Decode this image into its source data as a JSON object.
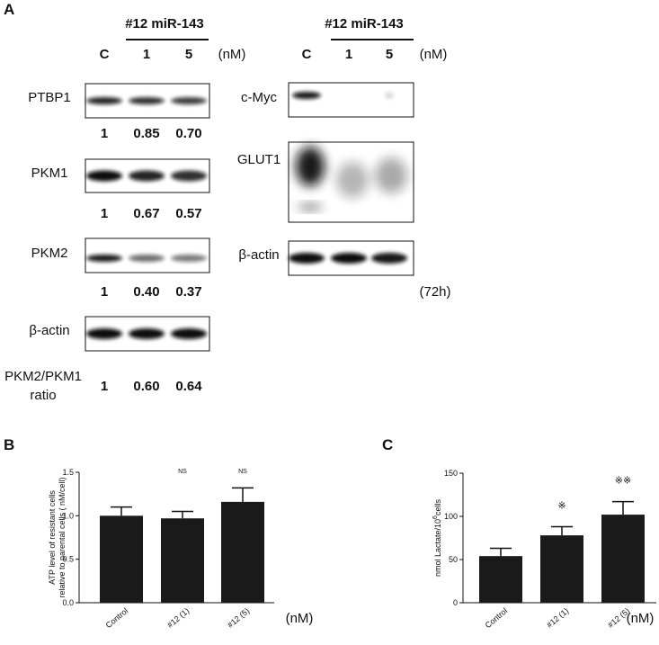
{
  "panel_a": {
    "label": "A",
    "left": {
      "treatment": "#12 miR-143",
      "lanes": [
        "C",
        "1",
        "5"
      ],
      "unit": "(nM)",
      "blots": [
        {
          "name": "PTBP1",
          "quant": [
            "1",
            "0.85",
            "0.70"
          ]
        },
        {
          "name": "PKM1",
          "quant": [
            "1",
            "0.67",
            "0.57"
          ]
        },
        {
          "name": "PKM2",
          "quant": [
            "1",
            "0.40",
            "0.37"
          ]
        },
        {
          "name": "β-actin"
        }
      ],
      "ratio": {
        "label": [
          "PKM2/PKM1",
          "ratio"
        ],
        "quant": [
          "1",
          "0.60",
          "0.64"
        ]
      }
    },
    "right": {
      "treatment": "#12 miR-143",
      "lanes": [
        "C",
        "1",
        "5"
      ],
      "unit": "(nM)",
      "blots": [
        {
          "name": "c-Myc"
        },
        {
          "name": "GLUT1"
        },
        {
          "name": "β-actin"
        }
      ],
      "time": "(72h)"
    }
  },
  "chart_data": [
    {
      "type": "bar",
      "panel": "B",
      "y_label": [
        "ATP level of resistant cells",
        "relative to parental cells ( nM/cell)"
      ],
      "categories": [
        "Control",
        "#12 (1)",
        "#12 (5)"
      ],
      "unit": "(nM)",
      "series": [
        {
          "color": "#1a1a1a",
          "values": [
            1.0,
            0.97,
            1.16
          ],
          "errors": [
            0.1,
            0.08,
            0.16
          ]
        }
      ],
      "annotations": [
        null,
        "NS",
        "NS"
      ],
      "ylim": [
        0,
        1.5
      ],
      "yticks": [
        {
          "value": 0,
          "label": "0.0"
        },
        {
          "value": 0.5,
          "label": "0.5"
        },
        {
          "value": 1,
          "label": "1.0"
        },
        {
          "value": 1.5,
          "label": "1.5"
        }
      ]
    },
    {
      "type": "bar",
      "panel": "C",
      "y_label": [
        "nmol Lactate/10",
        "6",
        "cells"
      ],
      "categories": [
        "Control",
        "#12 (1)",
        "#12 (5)"
      ],
      "unit": "(nM)",
      "series": [
        {
          "color": "#1a1a1a",
          "values": [
            54,
            78,
            102
          ],
          "errors": [
            9,
            10,
            15
          ]
        }
      ],
      "annotations": [
        null,
        "※",
        "※※"
      ],
      "ylim": [
        0,
        150
      ],
      "yticks": [
        0,
        50,
        100,
        150
      ]
    }
  ]
}
